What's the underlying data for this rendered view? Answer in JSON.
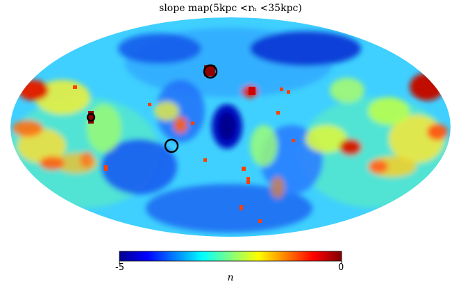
{
  "title": "slope map(5kpc <rₕ <35kpc)",
  "projection": "Mollweide",
  "colorbar": {
    "min_label": "-5",
    "max_label": "0",
    "label": "n",
    "colormap": "jet",
    "colors": [
      "#00008f",
      "#0000ff",
      "#00a0ff",
      "#20ffdf",
      "#ffff00",
      "#ff7f00",
      "#ff0000",
      "#7f0000"
    ]
  },
  "markers": [
    {
      "name": "circle-upper-center",
      "style": "black-ring"
    },
    {
      "name": "circle-left",
      "style": "black-ring"
    },
    {
      "name": "circle-lower-center",
      "style": "black-ring"
    }
  ]
}
